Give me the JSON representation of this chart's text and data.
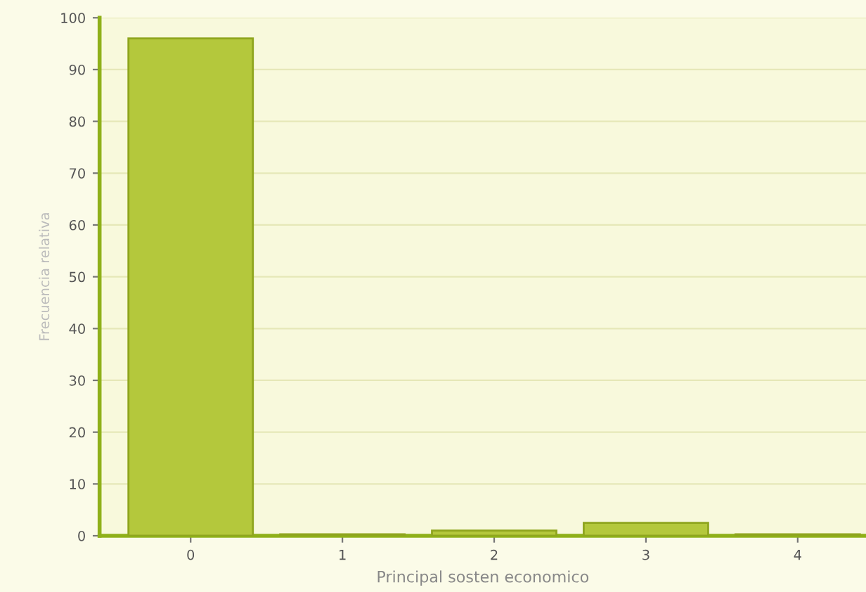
{
  "chart_data": {
    "type": "bar",
    "xlabel": "Principal sosten economico",
    "ylabel": "Frecuencia relativa",
    "categories": [
      "0",
      "1",
      "2",
      "3",
      "4"
    ],
    "values": [
      96,
      0.3,
      1,
      2.5,
      0.3
    ],
    "color": "#b4c83c",
    "ylim": [
      0,
      100
    ],
    "yticks": [
      0,
      10,
      20,
      30,
      40,
      50,
      60,
      70,
      80,
      90,
      100
    ],
    "grid": "y"
  }
}
